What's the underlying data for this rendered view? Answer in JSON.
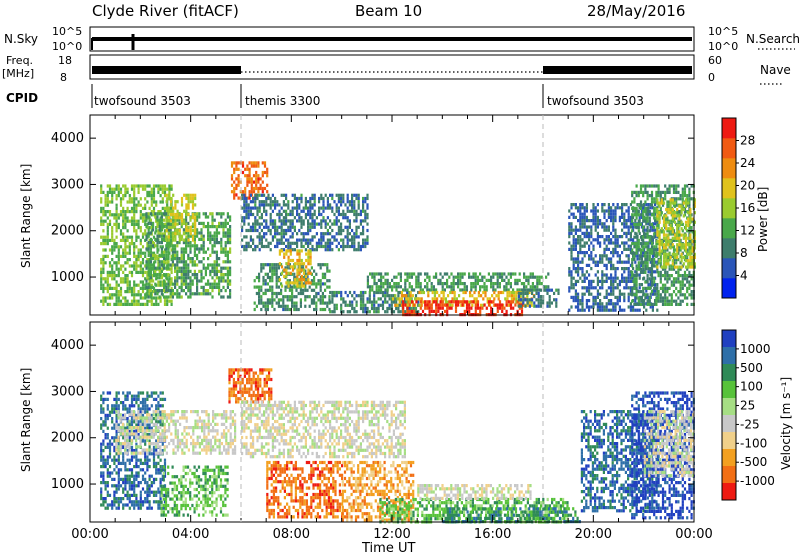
{
  "header": {
    "title": "Clyde River (fitACF)",
    "beam": "Beam 10",
    "date": "28/May/2016"
  },
  "status_panels": {
    "nsky_label": "N.Sky",
    "nsky_ticks": [
      "10^5",
      "10^0"
    ],
    "nsearch_label": "N.Search",
    "nsearch_ticks": [
      "10^5",
      "10^0"
    ],
    "freq_label": "Freq.",
    "freq_unit": "[MHz]",
    "freq_ticks": [
      "18",
      "8"
    ],
    "nave_label": "Nave",
    "nave_ticks": [
      "60",
      "0"
    ],
    "cpid_label": "CPID",
    "cpid_segments": [
      {
        "name": "twofsound 3503",
        "start_hour": 0,
        "end_hour": 6
      },
      {
        "name": "themis 3300",
        "start_hour": 6,
        "end_hour": 18
      },
      {
        "name": "twofsound 3503",
        "start_hour": 18,
        "end_hour": 24
      }
    ]
  },
  "chart_data": [
    {
      "type": "heatmap",
      "name": "power",
      "xlabel": "Time UT",
      "ylabel": "Slant Range [km]",
      "x_ticks": [
        "00:00",
        "04:00",
        "08:00",
        "12:00",
        "16:00",
        "20:00",
        "00:00"
      ],
      "xlim_hours": [
        0,
        24
      ],
      "y_ticks": [
        1000,
        2000,
        3000,
        4000
      ],
      "ylim": [
        180,
        4500
      ],
      "colorbar_label": "Power [dB]",
      "colorbar_ticks": [
        4,
        8,
        12,
        16,
        20,
        24,
        28
      ],
      "colorbar_range": [
        0,
        32
      ],
      "colors": [
        "#0022ee",
        "#2a55b8",
        "#3e7d6c",
        "#49a84a",
        "#9acb2f",
        "#e0c21c",
        "#ee8c10",
        "#f15a12",
        "#ee1a12"
      ],
      "regions": [
        {
          "t0": 0.4,
          "t1": 3.2,
          "r0": 400,
          "r1": 3000,
          "v": 14
        },
        {
          "t0": 2.2,
          "t1": 5.6,
          "r0": 600,
          "r1": 2400,
          "v": 12
        },
        {
          "t0": 3.0,
          "t1": 4.2,
          "r0": 1800,
          "r1": 2800,
          "v": 18
        },
        {
          "t0": 5.6,
          "t1": 7.0,
          "r0": 2700,
          "r1": 3500,
          "v": 26
        },
        {
          "t0": 6.0,
          "t1": 11.0,
          "r0": 1600,
          "r1": 2800,
          "v": 8
        },
        {
          "t0": 6.5,
          "t1": 9.5,
          "r0": 300,
          "r1": 1300,
          "v": 10
        },
        {
          "t0": 7.5,
          "t1": 8.8,
          "r0": 800,
          "r1": 1600,
          "v": 20
        },
        {
          "t0": 9.5,
          "t1": 13.0,
          "r0": 250,
          "r1": 700,
          "v": 9
        },
        {
          "t0": 11.0,
          "t1": 18.2,
          "r0": 700,
          "r1": 1100,
          "v": 11
        },
        {
          "t0": 12.0,
          "t1": 17.6,
          "r0": 400,
          "r1": 700,
          "v": 20
        },
        {
          "t0": 12.4,
          "t1": 17.2,
          "r0": 200,
          "r1": 500,
          "v": 29
        },
        {
          "t0": 17.0,
          "t1": 18.6,
          "r0": 350,
          "r1": 750,
          "v": 8
        },
        {
          "t0": 19.0,
          "t1": 22.5,
          "r0": 300,
          "r1": 2600,
          "v": 7
        },
        {
          "t0": 21.5,
          "t1": 24.0,
          "r0": 400,
          "r1": 3000,
          "v": 11
        },
        {
          "t0": 22.5,
          "t1": 24.0,
          "r0": 1200,
          "r1": 2700,
          "v": 17
        }
      ]
    },
    {
      "type": "heatmap",
      "name": "velocity",
      "xlabel": "Time UT",
      "ylabel": "Slant Range [km]",
      "x_ticks": [
        "00:00",
        "04:00",
        "08:00",
        "12:00",
        "16:00",
        "20:00",
        "00:00"
      ],
      "xlim_hours": [
        0,
        24
      ],
      "y_ticks": [
        1000,
        2000,
        3000,
        4000
      ],
      "ylim": [
        180,
        4500
      ],
      "colorbar_label": "Velocity [m s⁻¹]",
      "colorbar_ticks": [
        "1000",
        "500",
        "100",
        "25",
        "-25",
        "-100",
        "-500",
        "-1000"
      ],
      "colors": [
        "#2040c0",
        "#2e6fa8",
        "#2f8a57",
        "#57c23a",
        "#a6de84",
        "#c8c8c8",
        "#f0d08a",
        "#f3a020",
        "#f26f15",
        "#ee1a12"
      ],
      "regions": [
        {
          "t0": 0.4,
          "t1": 3.0,
          "r0": 500,
          "r1": 3000,
          "v": 1
        },
        {
          "t0": 1.0,
          "t1": 5.8,
          "r0": 1700,
          "r1": 2600,
          "v": 5
        },
        {
          "t0": 2.8,
          "t1": 5.5,
          "r0": 300,
          "r1": 1400,
          "v": 3
        },
        {
          "t0": 5.5,
          "t1": 7.2,
          "r0": 2800,
          "r1": 3500,
          "v": 8
        },
        {
          "t0": 6.0,
          "t1": 12.5,
          "r0": 1600,
          "r1": 2800,
          "v": 5
        },
        {
          "t0": 7.0,
          "t1": 10.0,
          "r0": 300,
          "r1": 1500,
          "v": 8
        },
        {
          "t0": 10.0,
          "t1": 12.8,
          "r0": 200,
          "r1": 1500,
          "v": 7
        },
        {
          "t0": 11.5,
          "t1": 19.0,
          "r0": 200,
          "r1": 700,
          "v": 3
        },
        {
          "t0": 13.0,
          "t1": 17.5,
          "r0": 700,
          "r1": 1000,
          "v": 5
        },
        {
          "t0": 14.0,
          "t1": 19.5,
          "r0": 200,
          "r1": 500,
          "v": 2
        },
        {
          "t0": 19.5,
          "t1": 22.5,
          "r0": 400,
          "r1": 2600,
          "v": 1
        },
        {
          "t0": 21.5,
          "t1": 24.0,
          "r0": 300,
          "r1": 3000,
          "v": 0
        },
        {
          "t0": 22.0,
          "t1": 24.0,
          "r0": 1200,
          "r1": 2600,
          "v": 5
        }
      ]
    }
  ]
}
